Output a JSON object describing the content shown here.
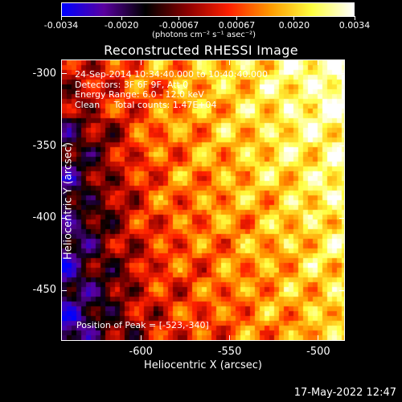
{
  "colorbar": {
    "tick_labels": [
      "-0.0034",
      "-0.0020",
      "-0.00067",
      "0.00067",
      "0.0020",
      "0.0034"
    ],
    "tick_values": [
      -0.0034,
      -0.002,
      -0.00067,
      0.00067,
      0.002,
      0.0034
    ],
    "min": -0.0034,
    "max": 0.0034,
    "units": "(photons cm⁻² s⁻¹ asec⁻²)",
    "colors": [
      "#0000ff",
      "#5a00a0",
      "#000000",
      "#8a0000",
      "#ff2000",
      "#ff9a00",
      "#ffff40",
      "#ffffff"
    ]
  },
  "title": "Reconstructed RHESSI Image",
  "info": {
    "line1": "24-Sep-2014 10:34:40.000 to 10:40:40.000",
    "line2": "Detectors: 3F 6F 9F, Att 0",
    "line3": "Energy Range: 6.0 - 12.0 keV",
    "line4": "Clean     Total counts: 1.47E+04"
  },
  "peak": "Position of Peak = [-523,-340]",
  "axes": {
    "xlabel": "Heliocentric X (arcsec)",
    "ylabel": "Heliocentric Y (arcsec)",
    "xticks": [
      {
        "label": "-600",
        "value": -600
      },
      {
        "label": "-550",
        "value": -550
      },
      {
        "label": "-500",
        "value": -500
      }
    ],
    "yticks": [
      {
        "label": "-300",
        "value": -300
      },
      {
        "label": "-350",
        "value": -350
      },
      {
        "label": "-400",
        "value": -400
      },
      {
        "label": "-450",
        "value": -450
      }
    ],
    "xlim": [
      -645,
      -485
    ],
    "ylim": [
      -485,
      -290
    ]
  },
  "timestamp": "17-May-2022 12:47"
}
